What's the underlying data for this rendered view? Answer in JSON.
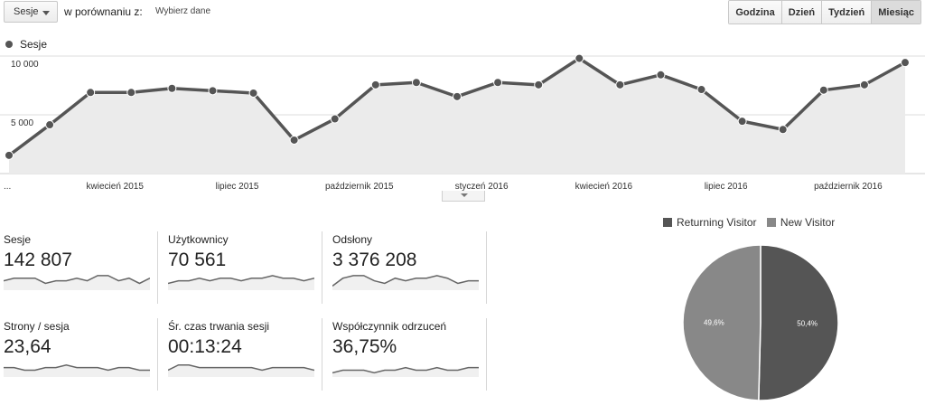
{
  "toolbar": {
    "metric_select": "Sesje",
    "compare_label": "w porównaniu z:",
    "compare_link": "Wybierz dane",
    "periods": [
      {
        "label": "Godzina",
        "active": false
      },
      {
        "label": "Dzień",
        "active": false
      },
      {
        "label": "Tydzień",
        "active": false
      },
      {
        "label": "Miesiąc",
        "active": true
      }
    ]
  },
  "chart_data": [
    {
      "type": "area",
      "series": [
        {
          "name": "Sesje",
          "values": [
            1550,
            4150,
            6900,
            6900,
            7250,
            7050,
            6850,
            2850,
            4650,
            7550,
            7750,
            6550,
            7750,
            7550,
            9800,
            7550,
            8400,
            7150,
            4450,
            3750,
            7100,
            7550,
            9450
          ]
        }
      ],
      "ylim": [
        0,
        10000
      ],
      "yticks": [
        "10 000",
        "5 000"
      ],
      "ytick_values": [
        10000,
        5000
      ],
      "xtick_labels": [
        "...",
        "kwiecień 2015",
        "lipiec 2015",
        "październik 2015",
        "styczeń 2016",
        "kwiecień 2016",
        "lipiec 2016",
        "październik 2016"
      ],
      "xtick_indices": [
        0,
        2.6,
        5.6,
        8.6,
        11.6,
        14.6,
        17.6,
        20.6
      ],
      "legend": "top-left",
      "grid": true
    },
    {
      "type": "pie",
      "categories": [
        "Returning Visitor",
        "New Visitor"
      ],
      "values": [
        50.4,
        49.6
      ],
      "labels": [
        "50,4%",
        "49,6%"
      ],
      "colors": [
        "#555555",
        "#888888"
      ],
      "legend": "top"
    }
  ],
  "kpis": [
    {
      "label": "Sesje",
      "value": "142 807",
      "spark": [
        5,
        6,
        6,
        6,
        4,
        5,
        5,
        6,
        5,
        7,
        7,
        5,
        6,
        4,
        6
      ]
    },
    {
      "label": "Użytkownicy",
      "value": "70 561",
      "spark": [
        4,
        5,
        5,
        6,
        5,
        6,
        6,
        5,
        6,
        6,
        7,
        6,
        6,
        5,
        6
      ]
    },
    {
      "label": "Odsłony",
      "value": "3 376 208",
      "spark": [
        3,
        6,
        7,
        7,
        5,
        4,
        6,
        5,
        6,
        6,
        7,
        6,
        4,
        5,
        5
      ]
    },
    {
      "label": "Strony / sesja",
      "value": "23,64",
      "spark": [
        5,
        5,
        4,
        4,
        5,
        5,
        6,
        5,
        5,
        5,
        4,
        5,
        5,
        4,
        4
      ]
    },
    {
      "label": "Śr. czas trwania sesji",
      "value": "00:13:24",
      "spark": [
        4,
        6,
        6,
        5,
        5,
        5,
        5,
        5,
        5,
        4,
        5,
        5,
        5,
        5,
        4
      ]
    },
    {
      "label": "Współczynnik odrzuceń",
      "value": "36,75%",
      "spark": [
        3,
        4,
        4,
        4,
        3,
        4,
        4,
        5,
        4,
        4,
        5,
        4,
        4,
        5,
        5
      ]
    }
  ]
}
